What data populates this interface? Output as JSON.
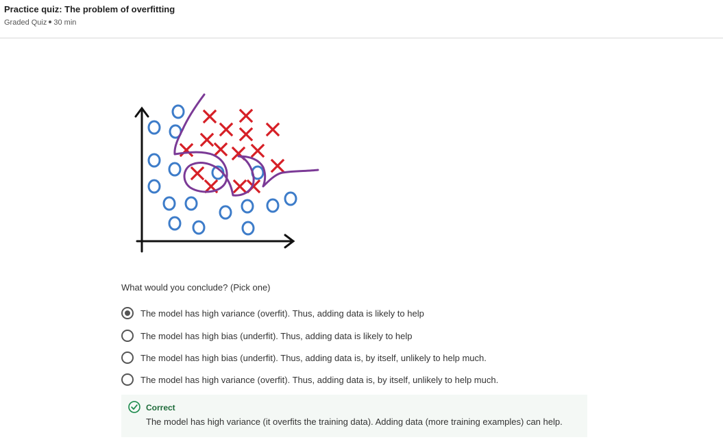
{
  "header": {
    "title": "Practice quiz: The problem of overfitting",
    "quiz_type": "Graded Quiz",
    "duration": "30 min"
  },
  "question": {
    "prompt": "What would you conclude? (Pick one)",
    "options": [
      {
        "label": "The model has high variance (overfit). Thus, adding data is likely to help",
        "selected": true
      },
      {
        "label": "The model has high bias (underfit). Thus, adding data is likely to help",
        "selected": false
      },
      {
        "label": "The model has high bias (underfit). Thus, adding data is, by itself, unlikely to help much.",
        "selected": false
      },
      {
        "label": "The model has high variance (overfit). Thus, adding data is, by itself, unlikely to help much.",
        "selected": false
      }
    ]
  },
  "feedback": {
    "status": "Correct",
    "explanation": "The model has high variance (it overfits the training data). Adding data (more training examples) can help."
  },
  "colors": {
    "circle": "#3d7cc9",
    "cross": "#d61f26",
    "boundary": "#7b3a96",
    "correct": "#1e8c4e"
  }
}
